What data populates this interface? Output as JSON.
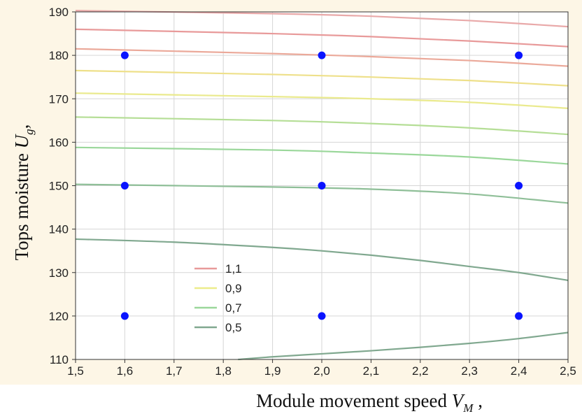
{
  "chart_data": {
    "type": "contour",
    "xlabel": "Module movement speed",
    "xlabel_symbol": "V",
    "xlabel_subscript": "M",
    "xlabel_suffix": " ,",
    "ylabel": "Tops moisture",
    "ylabel_symbol": "U",
    "ylabel_subscript": "g",
    "ylabel_suffix": ",",
    "xlim": [
      1.5,
      2.5
    ],
    "ylim": [
      110,
      190
    ],
    "x_ticks": [
      1.5,
      1.6,
      1.7,
      1.8,
      1.9,
      2.0,
      2.1,
      2.2,
      2.3,
      2.4,
      2.5
    ],
    "x_tick_labels": [
      "1,5",
      "1,6",
      "1,7",
      "1,8",
      "1,9",
      "2,0",
      "2,1",
      "2,2",
      "2,3",
      "2,4",
      "2,5"
    ],
    "y_ticks": [
      110,
      120,
      130,
      140,
      150,
      160,
      170,
      180,
      190
    ],
    "y_tick_labels": [
      "110",
      "120",
      "130",
      "140",
      "150",
      "160",
      "170",
      "180",
      "190"
    ],
    "grid": true,
    "legend_position": "bottom-left",
    "legend": [
      {
        "label": "1,1",
        "color": "#e89a9a"
      },
      {
        "label": "0,9",
        "color": "#ecec8a"
      },
      {
        "label": "0,7",
        "color": "#9ad79a"
      },
      {
        "label": "0,5",
        "color": "#80a88f"
      }
    ],
    "contours": [
      {
        "color": "#e9a9a9",
        "x": [
          1.5,
          1.9,
          2.1,
          2.3,
          2.5
        ],
        "y": [
          190.3,
          189.6,
          189.0,
          188.0,
          186.6
        ]
      },
      {
        "color": "#e89a9a",
        "x": [
          1.5,
          1.9,
          2.1,
          2.3,
          2.5
        ],
        "y": [
          186.0,
          185.0,
          184.3,
          183.3,
          182.0
        ]
      },
      {
        "color": "#eba99a",
        "x": [
          1.5,
          1.9,
          2.1,
          2.3,
          2.5
        ],
        "y": [
          181.5,
          180.4,
          179.7,
          178.8,
          177.5
        ]
      },
      {
        "color": "#eee08a",
        "x": [
          1.5,
          1.9,
          2.1,
          2.3,
          2.5
        ],
        "y": [
          176.5,
          175.6,
          175.0,
          174.2,
          173.0
        ]
      },
      {
        "color": "#eaea8e",
        "x": [
          1.5,
          1.9,
          2.1,
          2.3,
          2.5
        ],
        "y": [
          171.3,
          170.5,
          170.0,
          169.2,
          167.8
        ]
      },
      {
        "color": "#b5de96",
        "x": [
          1.5,
          1.9,
          2.1,
          2.3,
          2.5
        ],
        "y": [
          165.8,
          165.0,
          164.3,
          163.3,
          161.8
        ]
      },
      {
        "color": "#9ad79a",
        "x": [
          1.5,
          1.9,
          2.1,
          2.3,
          2.5
        ],
        "y": [
          158.8,
          158.2,
          157.5,
          156.6,
          155.0
        ]
      },
      {
        "color": "#8fbf98",
        "x": [
          1.5,
          1.9,
          2.1,
          2.3,
          2.5
        ],
        "y": [
          150.3,
          149.7,
          149.2,
          148.1,
          146.0
        ]
      },
      {
        "color": "#80a88f",
        "x": [
          1.5,
          1.7,
          1.9,
          2.0,
          2.1,
          2.2,
          2.3,
          2.4,
          2.5
        ],
        "y": [
          137.7,
          137.0,
          135.8,
          135.0,
          134.0,
          132.8,
          131.4,
          130.0,
          128.2
        ]
      },
      {
        "color": "#80a88f",
        "x": [
          1.83,
          1.9,
          2.0,
          2.1,
          2.2,
          2.3,
          2.4,
          2.5
        ],
        "y": [
          110,
          110.6,
          111.3,
          112.0,
          112.8,
          113.7,
          114.8,
          116.2
        ]
      }
    ],
    "points": [
      {
        "x": 1.6,
        "y": 180
      },
      {
        "x": 2.0,
        "y": 180
      },
      {
        "x": 2.4,
        "y": 180
      },
      {
        "x": 1.6,
        "y": 150
      },
      {
        "x": 2.0,
        "y": 150
      },
      {
        "x": 2.4,
        "y": 150
      },
      {
        "x": 1.6,
        "y": 120
      },
      {
        "x": 2.0,
        "y": 120
      },
      {
        "x": 2.4,
        "y": 120
      }
    ],
    "point_color": "#0a14ff",
    "frame_background": "#fdf6e6",
    "plot_background": "#ffffff"
  }
}
